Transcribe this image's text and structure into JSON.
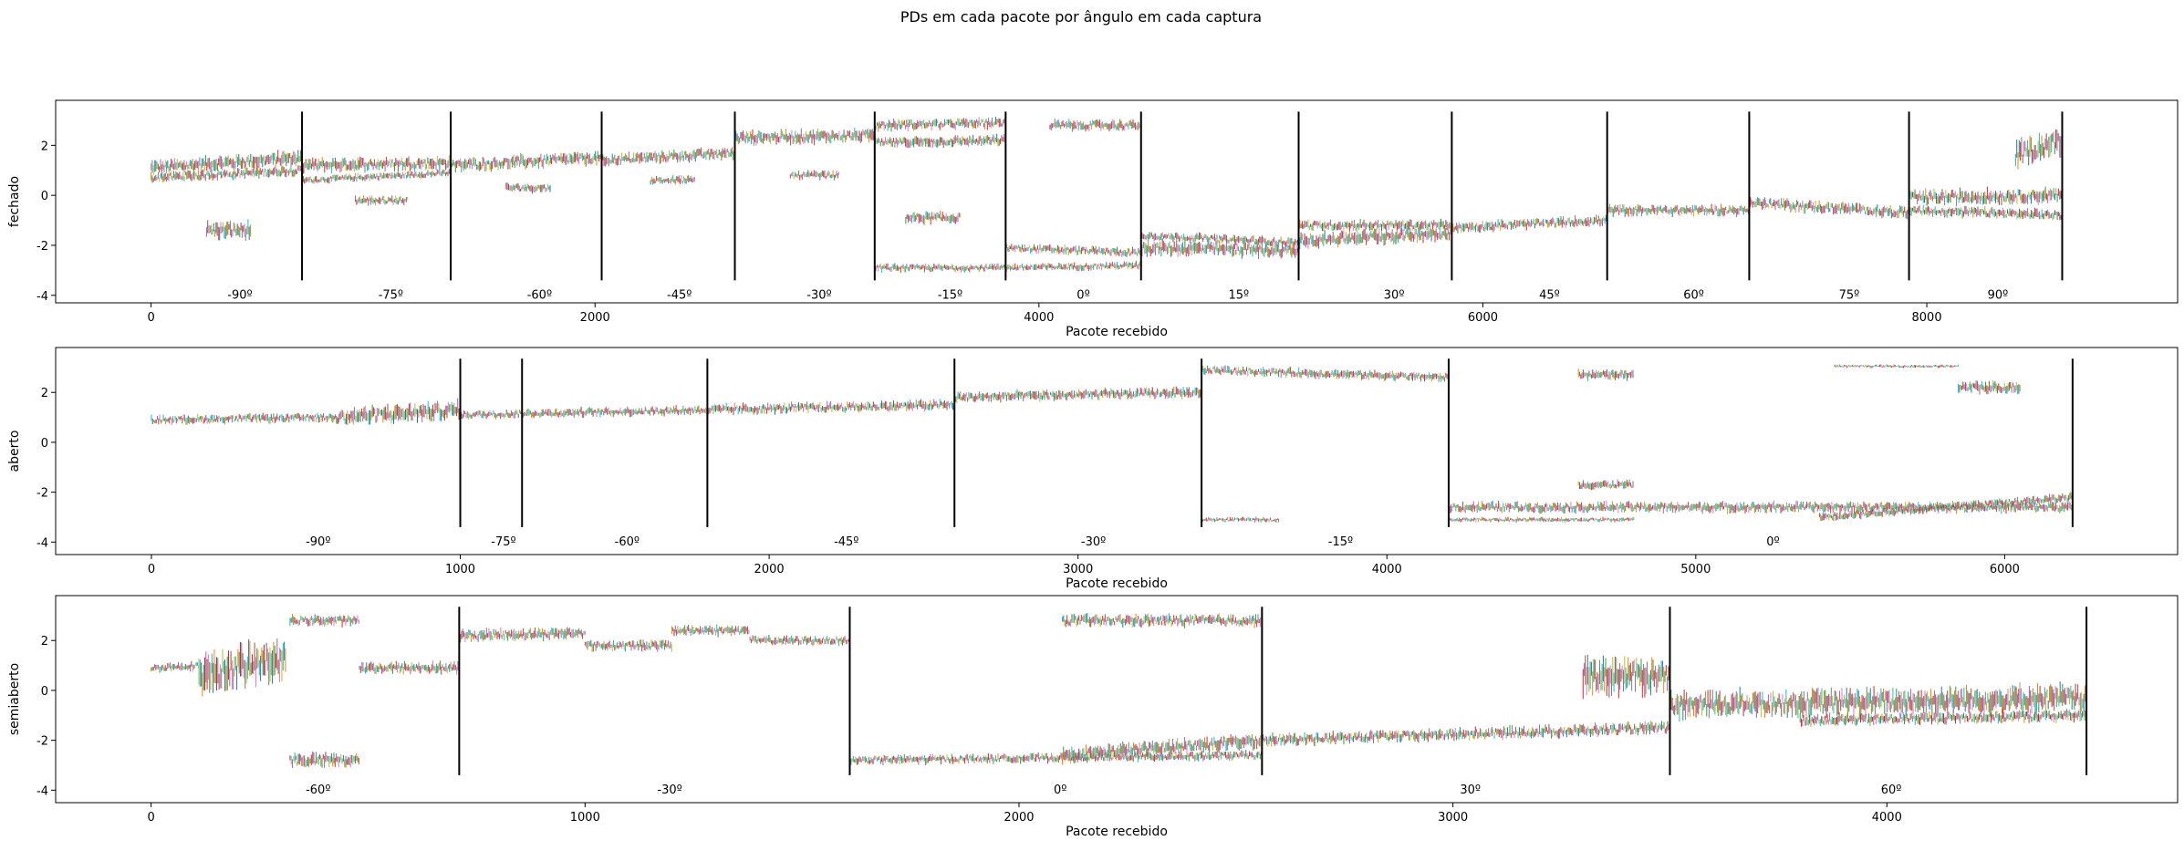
{
  "figure": {
    "suptitle": "PDs em cada pacote por ângulo em  cada captura"
  },
  "chart_data": [
    {
      "type": "line",
      "ylabel": "fechado",
      "xlabel": "Pacote recebido",
      "xlim": [
        -430,
        9130
      ],
      "ylim": [
        -4.3,
        3.8
      ],
      "xticks": [
        0,
        2000,
        4000,
        6000,
        8000
      ],
      "yticks": [
        -4,
        -2,
        0,
        2
      ],
      "grid": false,
      "legend": "none",
      "boundaries": [
        680,
        1350,
        2030,
        2630,
        3260,
        3850,
        4460,
        5170,
        5860,
        6560,
        7200,
        7920,
        8610
      ],
      "angle_labels": [
        {
          "x": 400,
          "label": "-90º"
        },
        {
          "x": 1080,
          "label": "-75º"
        },
        {
          "x": 1750,
          "label": "-60º"
        },
        {
          "x": 2380,
          "label": "-45º"
        },
        {
          "x": 3010,
          "label": "-30º"
        },
        {
          "x": 3600,
          "label": "-15º"
        },
        {
          "x": 4200,
          "label": "0º"
        },
        {
          "x": 4900,
          "label": "15º"
        },
        {
          "x": 5600,
          "label": "30º"
        },
        {
          "x": 6300,
          "label": "45º"
        },
        {
          "x": 6950,
          "label": "60º"
        },
        {
          "x": 7650,
          "label": "75º"
        },
        {
          "x": 8320,
          "label": "90º"
        }
      ],
      "bands": [
        {
          "x": [
            0,
            680
          ],
          "y": [
            1.1,
            1.5
          ],
          "spread": 0.5
        },
        {
          "x": [
            0,
            680
          ],
          "y": [
            0.7,
            1.0
          ],
          "spread": 0.35
        },
        {
          "x": [
            250,
            450
          ],
          "y": [
            -1.4,
            -1.4
          ],
          "spread": 0.6
        },
        {
          "x": [
            680,
            1350
          ],
          "y": [
            1.2,
            1.3
          ],
          "spread": 0.45
        },
        {
          "x": [
            680,
            1350
          ],
          "y": [
            0.6,
            0.9
          ],
          "spread": 0.25
        },
        {
          "x": [
            920,
            1160
          ],
          "y": [
            -0.2,
            -0.2
          ],
          "spread": 0.3
        },
        {
          "x": [
            1350,
            2030
          ],
          "y": [
            1.2,
            1.5
          ],
          "spread": 0.45
        },
        {
          "x": [
            1600,
            1800
          ],
          "y": [
            0.3,
            0.3
          ],
          "spread": 0.3
        },
        {
          "x": [
            2030,
            2630
          ],
          "y": [
            1.4,
            1.7
          ],
          "spread": 0.4
        },
        {
          "x": [
            2250,
            2450
          ],
          "y": [
            0.6,
            0.6
          ],
          "spread": 0.3
        },
        {
          "x": [
            2630,
            3260
          ],
          "y": [
            2.3,
            2.4
          ],
          "spread": 0.45
        },
        {
          "x": [
            2880,
            3100
          ],
          "y": [
            0.8,
            0.8
          ],
          "spread": 0.3
        },
        {
          "x": [
            3260,
            3850
          ],
          "y": [
            2.8,
            2.9
          ],
          "spread": 0.35
        },
        {
          "x": [
            3260,
            3850
          ],
          "y": [
            2.1,
            2.2
          ],
          "spread": 0.35
        },
        {
          "x": [
            3400,
            3650
          ],
          "y": [
            -0.9,
            -0.9
          ],
          "spread": 0.4
        },
        {
          "x": [
            3260,
            3850
          ],
          "y": [
            -2.9,
            -2.9
          ],
          "spread": 0.25
        },
        {
          "x": [
            3850,
            4460
          ],
          "y": [
            -2.9,
            -2.8
          ],
          "spread": 0.25
        },
        {
          "x": [
            3850,
            4460
          ],
          "y": [
            -2.1,
            -2.3
          ],
          "spread": 0.3
        },
        {
          "x": [
            4050,
            4460
          ],
          "y": [
            2.8,
            2.8
          ],
          "spread": 0.35
        },
        {
          "x": [
            4460,
            5170
          ],
          "y": [
            -2.1,
            -2.2
          ],
          "spread": 0.5
        },
        {
          "x": [
            4460,
            5170
          ],
          "y": [
            -1.6,
            -1.9
          ],
          "spread": 0.3
        },
        {
          "x": [
            5170,
            5860
          ],
          "y": [
            -1.8,
            -1.5
          ],
          "spread": 0.5
        },
        {
          "x": [
            5170,
            5860
          ],
          "y": [
            -1.2,
            -1.2
          ],
          "spread": 0.35
        },
        {
          "x": [
            5860,
            6560
          ],
          "y": [
            -1.3,
            -1.0
          ],
          "spread": 0.35
        },
        {
          "x": [
            6560,
            7200
          ],
          "y": [
            -0.6,
            -0.6
          ],
          "spread": 0.35
        },
        {
          "x": [
            7200,
            7920
          ],
          "y": [
            -0.3,
            -0.7
          ],
          "spread": 0.4
        },
        {
          "x": [
            7920,
            8610
          ],
          "y": [
            -0.1,
            0.0
          ],
          "spread": 0.5
        },
        {
          "x": [
            7920,
            8610
          ],
          "y": [
            -0.6,
            -0.8
          ],
          "spread": 0.35
        },
        {
          "x": [
            8400,
            8610
          ],
          "y": [
            1.6,
            2.2
          ],
          "spread": 0.9
        }
      ]
    },
    {
      "type": "line",
      "ylabel": "aberto",
      "xlabel": "Pacote recebido",
      "xlim": [
        -310,
        6560
      ],
      "ylim": [
        -4.5,
        3.8
      ],
      "xticks": [
        0,
        1000,
        2000,
        3000,
        4000,
        5000,
        6000
      ],
      "yticks": [
        -4,
        -2,
        0,
        2
      ],
      "grid": false,
      "legend": "none",
      "boundaries": [
        1000,
        1200,
        1800,
        2600,
        3400,
        4200,
        6220
      ],
      "angle_labels": [
        {
          "x": 540,
          "label": "-90º"
        },
        {
          "x": 1140,
          "label": "-75º"
        },
        {
          "x": 1540,
          "label": "-60º"
        },
        {
          "x": 2250,
          "label": "-45º"
        },
        {
          "x": 3050,
          "label": "-30º"
        },
        {
          "x": 3850,
          "label": "-15º"
        },
        {
          "x": 5250,
          "label": "0º"
        }
      ],
      "bands": [
        {
          "x": [
            0,
            600
          ],
          "y": [
            0.9,
            1.0
          ],
          "spread": 0.3
        },
        {
          "x": [
            600,
            1000
          ],
          "y": [
            1.0,
            1.3
          ],
          "spread": 0.6
        },
        {
          "x": [
            1000,
            1800
          ],
          "y": [
            1.1,
            1.3
          ],
          "spread": 0.3
        },
        {
          "x": [
            1800,
            2600
          ],
          "y": [
            1.3,
            1.5
          ],
          "spread": 0.35
        },
        {
          "x": [
            2600,
            3400
          ],
          "y": [
            1.8,
            2.0
          ],
          "spread": 0.35
        },
        {
          "x": [
            3400,
            4200
          ],
          "y": [
            2.9,
            2.6
          ],
          "spread": 0.3
        },
        {
          "x": [
            3400,
            3650
          ],
          "y": [
            -3.1,
            -3.1
          ],
          "spread": 0.15
        },
        {
          "x": [
            4200,
            6220
          ],
          "y": [
            -2.6,
            -2.6
          ],
          "spread": 0.35
        },
        {
          "x": [
            4200,
            4800
          ],
          "y": [
            -3.1,
            -3.1
          ],
          "spread": 0.15
        },
        {
          "x": [
            4620,
            4800
          ],
          "y": [
            -1.7,
            -1.7
          ],
          "spread": 0.3
        },
        {
          "x": [
            4620,
            4800
          ],
          "y": [
            2.7,
            2.7
          ],
          "spread": 0.35
        },
        {
          "x": [
            5400,
            6220
          ],
          "y": [
            -3.0,
            -2.2
          ],
          "spread": 0.3
        },
        {
          "x": [
            5450,
            5850
          ],
          "y": [
            3.05,
            3.05
          ],
          "spread": 0.1
        },
        {
          "x": [
            5850,
            6050
          ],
          "y": [
            2.2,
            2.2
          ],
          "spread": 0.4
        }
      ]
    },
    {
      "type": "line",
      "ylabel": "semiaberto",
      "xlabel": "Pacote recebido",
      "xlim": [
        -220,
        4670
      ],
      "ylim": [
        -4.5,
        3.8
      ],
      "xticks": [
        0,
        1000,
        2000,
        3000,
        4000
      ],
      "yticks": [
        -4,
        -2,
        0,
        2
      ],
      "grid": false,
      "legend": "none",
      "boundaries": [
        710,
        1610,
        2560,
        3500,
        4460
      ],
      "angle_labels": [
        {
          "x": 385,
          "label": "-60º"
        },
        {
          "x": 1195,
          "label": "-30º"
        },
        {
          "x": 2095,
          "label": "0º"
        },
        {
          "x": 3040,
          "label": "30º"
        },
        {
          "x": 4010,
          "label": "60º"
        }
      ],
      "bands": [
        {
          "x": [
            0,
            110
          ],
          "y": [
            0.9,
            1.0
          ],
          "spread": 0.3
        },
        {
          "x": [
            110,
            310
          ],
          "y": [
            0.6,
            1.3
          ],
          "spread": 1.4
        },
        {
          "x": [
            320,
            480
          ],
          "y": [
            2.8,
            2.8
          ],
          "spread": 0.35
        },
        {
          "x": [
            320,
            480
          ],
          "y": [
            -2.8,
            -2.8
          ],
          "spread": 0.5
        },
        {
          "x": [
            480,
            710
          ],
          "y": [
            0.9,
            0.9
          ],
          "spread": 0.4
        },
        {
          "x": [
            710,
            1000
          ],
          "y": [
            2.2,
            2.3
          ],
          "spread": 0.4
        },
        {
          "x": [
            1000,
            1200
          ],
          "y": [
            1.8,
            1.8
          ],
          "spread": 0.35
        },
        {
          "x": [
            1200,
            1380
          ],
          "y": [
            2.4,
            2.4
          ],
          "spread": 0.35
        },
        {
          "x": [
            1380,
            1610
          ],
          "y": [
            2.0,
            2.0
          ],
          "spread": 0.3
        },
        {
          "x": [
            1610,
            2560
          ],
          "y": [
            -2.8,
            -2.6
          ],
          "spread": 0.3
        },
        {
          "x": [
            2100,
            2560
          ],
          "y": [
            -2.6,
            -2.0
          ],
          "spread": 0.5
        },
        {
          "x": [
            2100,
            2560
          ],
          "y": [
            2.8,
            2.8
          ],
          "spread": 0.4
        },
        {
          "x": [
            2560,
            3500
          ],
          "y": [
            -2.0,
            -1.5
          ],
          "spread": 0.4
        },
        {
          "x": [
            3300,
            3500
          ],
          "y": [
            0.6,
            0.6
          ],
          "spread": 1.2
        },
        {
          "x": [
            3500,
            4460
          ],
          "y": [
            -0.6,
            -0.3
          ],
          "spread": 0.9
        },
        {
          "x": [
            3800,
            4460
          ],
          "y": [
            -1.2,
            -1.0
          ],
          "spread": 0.4
        }
      ]
    }
  ]
}
